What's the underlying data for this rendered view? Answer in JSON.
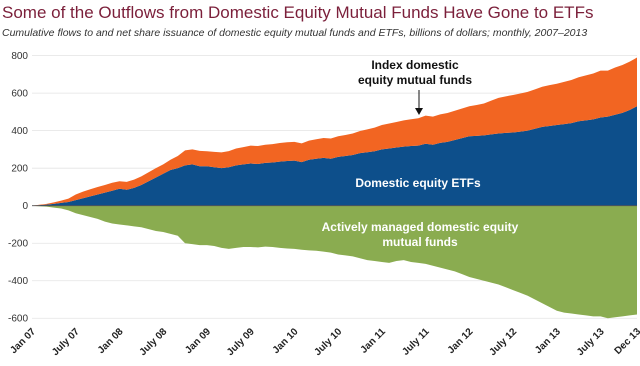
{
  "chart_data": {
    "type": "stacked_area",
    "title": "Some of the Outflows from Domestic Equity Mutual Funds Have Gone to ETFs",
    "subtitle": "Cumulative flows to and net share issuance of domestic equity mutual funds and ETFs, billions of dollars; monthly, 2007–2013",
    "categories": [
      "Jan 07",
      null,
      null,
      null,
      null,
      null,
      "July 07",
      null,
      null,
      null,
      null,
      null,
      "Jan 08",
      null,
      null,
      null,
      null,
      null,
      "July 08",
      null,
      null,
      null,
      null,
      null,
      "Jan 09",
      null,
      null,
      null,
      null,
      null,
      "July 09",
      null,
      null,
      null,
      null,
      null,
      "Jan 10",
      null,
      null,
      null,
      null,
      null,
      "July 10",
      null,
      null,
      null,
      null,
      null,
      "Jan 11",
      null,
      null,
      null,
      null,
      null,
      "July 11",
      null,
      null,
      null,
      null,
      null,
      "Jan 12",
      null,
      null,
      null,
      null,
      null,
      "July 12",
      null,
      null,
      null,
      null,
      null,
      "Jan 13",
      null,
      null,
      null,
      null,
      null,
      "July 13",
      null,
      null,
      null,
      null,
      "Dec 13"
    ],
    "series": [
      {
        "name": "Domestic equity ETFs",
        "color": "#0d4f8b",
        "values": [
          0,
          3,
          6,
          10,
          15,
          20,
          30,
          40,
          50,
          60,
          70,
          80,
          90,
          85,
          95,
          110,
          130,
          150,
          170,
          190,
          200,
          215,
          220,
          210,
          210,
          205,
          200,
          205,
          215,
          220,
          225,
          222,
          228,
          230,
          235,
          238,
          240,
          232,
          245,
          250,
          255,
          250,
          260,
          265,
          270,
          280,
          285,
          290,
          300,
          305,
          310,
          315,
          318,
          320,
          330,
          325,
          335,
          340,
          350,
          360,
          370,
          372,
          375,
          380,
          385,
          388,
          390,
          395,
          400,
          410,
          420,
          425,
          430,
          435,
          440,
          450,
          455,
          460,
          470,
          475,
          485,
          495,
          510,
          530
        ]
      },
      {
        "name": "Index domestic equity mutual funds",
        "color": "#f26522",
        "values": [
          0,
          2,
          4,
          8,
          12,
          18,
          30,
          35,
          38,
          40,
          40,
          42,
          40,
          42,
          44,
          46,
          48,
          50,
          50,
          55,
          65,
          80,
          80,
          82,
          80,
          82,
          84,
          86,
          90,
          92,
          95,
          96,
          97,
          98,
          99,
          100,
          100,
          100,
          102,
          104,
          106,
          108,
          110,
          112,
          115,
          118,
          122,
          126,
          130,
          133,
          136,
          140,
          143,
          146,
          150,
          150,
          152,
          154,
          156,
          158,
          160,
          165,
          170,
          180,
          190,
          195,
          200,
          203,
          207,
          210,
          214,
          218,
          220,
          225,
          230,
          235,
          240,
          245,
          250,
          245,
          252,
          255,
          258,
          260
        ]
      },
      {
        "name": "Actively managed domestic equity mutual funds",
        "color": "#8aac50",
        "values": [
          0,
          -3,
          -5,
          -10,
          -15,
          -25,
          -40,
          -50,
          -60,
          -70,
          -85,
          -95,
          -100,
          -105,
          -110,
          -115,
          -125,
          -135,
          -140,
          -150,
          -160,
          -200,
          -205,
          -210,
          -210,
          -215,
          -225,
          -230,
          -225,
          -220,
          -220,
          -222,
          -218,
          -220,
          -225,
          -228,
          -230,
          -235,
          -238,
          -240,
          -245,
          -250,
          -260,
          -265,
          -270,
          -280,
          -290,
          -295,
          -300,
          -305,
          -295,
          -290,
          -300,
          -305,
          -310,
          -320,
          -330,
          -340,
          -350,
          -365,
          -380,
          -390,
          -400,
          -410,
          -420,
          -435,
          -450,
          -465,
          -480,
          -500,
          -520,
          -540,
          -560,
          -570,
          -575,
          -580,
          -585,
          -590,
          -590,
          -600,
          -595,
          -590,
          -585,
          -580
        ]
      }
    ],
    "ylim": [
      -620,
      830
    ],
    "yticks": [
      -600,
      -400,
      -200,
      0,
      200,
      400,
      600,
      800
    ],
    "grid": true
  }
}
